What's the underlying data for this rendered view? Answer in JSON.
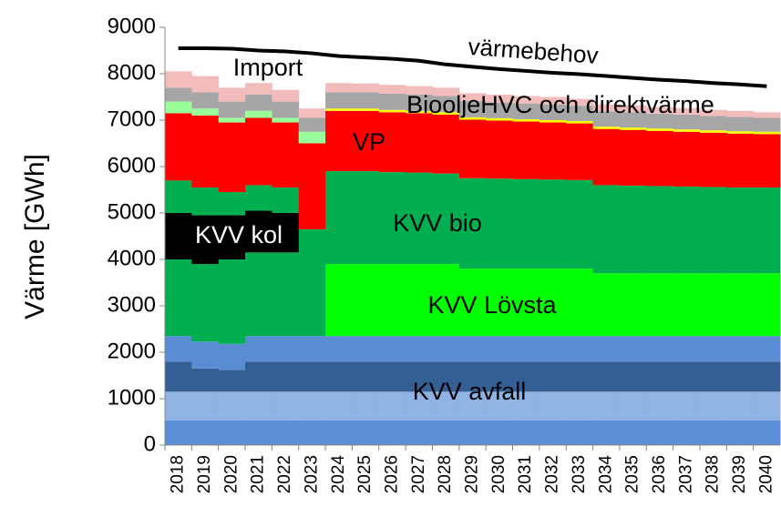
{
  "chart_data": {
    "type": "stacked_area",
    "y_label": "Värme [GWh]",
    "categories": [
      "2018",
      "2019",
      "2020",
      "2021",
      "2022",
      "2023",
      "2024",
      "2025",
      "2026",
      "2027",
      "2028",
      "2029",
      "2030",
      "2031",
      "2032",
      "2033",
      "2034",
      "2035",
      "2036",
      "2037",
      "2038",
      "2039",
      "2040"
    ],
    "ylim": [
      0,
      9000
    ],
    "yticks": [
      0,
      1000,
      2000,
      3000,
      4000,
      5000,
      6000,
      7000,
      8000,
      9000
    ],
    "series": [
      {
        "color": "#5b8fd6",
        "values": [
          530,
          530,
          530,
          530,
          530,
          530,
          530,
          530,
          530,
          530,
          530,
          530,
          530,
          530,
          530,
          530,
          530,
          530,
          530,
          530,
          530,
          530,
          530
        ]
      },
      {
        "color": "#8fb3e3",
        "values": [
          620,
          620,
          620,
          620,
          620,
          620,
          620,
          620,
          620,
          620,
          620,
          620,
          620,
          620,
          620,
          620,
          620,
          620,
          620,
          620,
          620,
          620,
          620
        ]
      },
      {
        "color": "#345f94",
        "values": [
          650,
          500,
          470,
          650,
          650,
          650,
          650,
          650,
          650,
          650,
          650,
          650,
          650,
          650,
          650,
          650,
          650,
          650,
          650,
          650,
          650,
          650,
          650
        ]
      },
      {
        "color": "#5a8cd4",
        "values": [
          550,
          580,
          560,
          550,
          550,
          550,
          550,
          550,
          550,
          550,
          550,
          550,
          550,
          550,
          550,
          550,
          550,
          550,
          550,
          550,
          550,
          550,
          550
        ]
      },
      {
        "color": "#00ff00",
        "values": [
          0,
          0,
          0,
          0,
          0,
          0,
          1550,
          1550,
          1550,
          1550,
          1550,
          1450,
          1450,
          1450,
          1450,
          1450,
          1350,
          1350,
          1350,
          1350,
          1350,
          1350,
          1350
        ]
      },
      {
        "color": "#00b050",
        "values": [
          1650,
          1670,
          1820,
          1800,
          1800,
          2300,
          2000,
          2000,
          1980,
          1970,
          1950,
          1950,
          1940,
          1930,
          1920,
          1910,
          1900,
          1890,
          1880,
          1870,
          1860,
          1850,
          1850
        ]
      },
      {
        "color": "#000000",
        "values": [
          1000,
          1050,
          950,
          900,
          850,
          0,
          0,
          0,
          0,
          0,
          0,
          0,
          0,
          0,
          0,
          0,
          0,
          0,
          0,
          0,
          0,
          0,
          0
        ]
      },
      {
        "color": "#00b050",
        "values": [
          700,
          600,
          500,
          550,
          550,
          0,
          0,
          0,
          0,
          0,
          0,
          0,
          0,
          0,
          0,
          0,
          0,
          0,
          0,
          0,
          0,
          0,
          0
        ]
      },
      {
        "color": "#ff0000",
        "values": [
          1450,
          1550,
          1500,
          1450,
          1400,
          1850,
          1300,
          1300,
          1290,
          1280,
          1270,
          1260,
          1250,
          1240,
          1230,
          1220,
          1210,
          1200,
          1190,
          1180,
          1170,
          1160,
          1150
        ]
      },
      {
        "color": "#ffff00",
        "values": [
          0,
          0,
          0,
          0,
          0,
          0,
          50,
          50,
          50,
          50,
          50,
          50,
          50,
          50,
          50,
          50,
          50,
          50,
          50,
          50,
          50,
          50,
          50
        ]
      },
      {
        "color": "#99ff99",
        "values": [
          250,
          150,
          100,
          150,
          100,
          250,
          0,
          0,
          0,
          0,
          0,
          0,
          0,
          0,
          0,
          0,
          0,
          0,
          0,
          0,
          0,
          0,
          0
        ]
      },
      {
        "color": "#a6a6a6",
        "values": [
          300,
          350,
          350,
          350,
          350,
          300,
          350,
          350,
          350,
          350,
          350,
          350,
          340,
          340,
          340,
          330,
          330,
          330,
          320,
          320,
          310,
          310,
          300
        ]
      },
      {
        "color": "#f2bcbc",
        "values": [
          350,
          350,
          300,
          250,
          250,
          200,
          200,
          190,
          190,
          180,
          180,
          170,
          170,
          160,
          160,
          150,
          150,
          150,
          140,
          140,
          130,
          130,
          120
        ]
      }
    ],
    "line": {
      "name": "värmebehov",
      "color": "#000000",
      "values": [
        8550,
        8550,
        8540,
        8500,
        8480,
        8440,
        8380,
        8350,
        8320,
        8280,
        8200,
        8150,
        8100,
        8060,
        8020,
        7990,
        7950,
        7910,
        7870,
        7840,
        7800,
        7770,
        7730
      ]
    },
    "annotations": [
      "Import",
      "BiooljeHVC och direktvärme",
      "VP",
      "KVV kol",
      "KVV bio",
      "KVV Lövsta",
      "KVV avfall"
    ]
  }
}
